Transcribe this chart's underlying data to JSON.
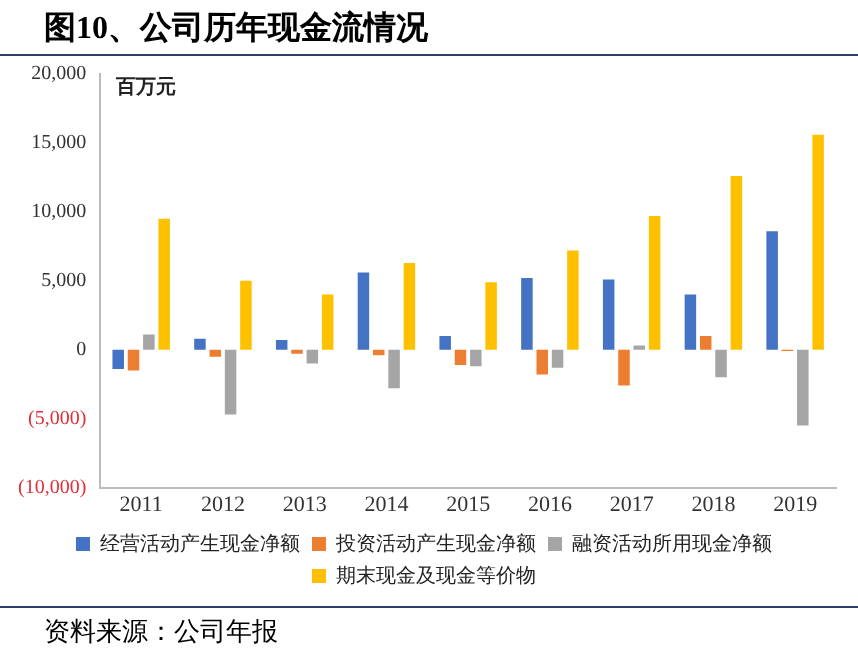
{
  "chart_data": {
    "type": "bar",
    "title": "图10、公司历年现金流情况",
    "ylabel": "百万元",
    "categories": [
      "2011",
      "2012",
      "2013",
      "2014",
      "2015",
      "2016",
      "2017",
      "2018",
      "2019"
    ],
    "series": [
      {
        "name": "经营活动产生现金净额",
        "color": "#4472c4",
        "values": [
          -1400,
          800,
          700,
          5600,
          1000,
          5200,
          5100,
          4000,
          8600
        ]
      },
      {
        "name": "投资活动产生现金净额",
        "color": "#ed7d31",
        "values": [
          -1500,
          -500,
          -300,
          -400,
          -1100,
          -1800,
          -2600,
          1000,
          -100
        ]
      },
      {
        "name": "融资活动所用现金净额",
        "color": "#a5a5a5",
        "values": [
          1100,
          -4700,
          -1000,
          -2800,
          -1200,
          -1300,
          300,
          -2000,
          -5500
        ]
      },
      {
        "name": "期末现金及现金等价物",
        "color": "#ffc000",
        "values": [
          9500,
          5000,
          4000,
          6300,
          4900,
          7200,
          9700,
          12600,
          15600
        ]
      }
    ],
    "ylim": [
      -10000,
      20000
    ],
    "yticks": [
      {
        "value": -10000,
        "label": "(10,000)"
      },
      {
        "value": -5000,
        "label": "(5,000)"
      },
      0,
      {
        "value": 5000,
        "label": "5,000"
      },
      {
        "value": 10000,
        "label": "10,000"
      },
      {
        "value": 15000,
        "label": "15,000"
      },
      {
        "value": 20000,
        "label": "20,000"
      }
    ],
    "grid": false,
    "legend": "bottom",
    "annotations": [
      "资料来源：公司年报"
    ]
  }
}
